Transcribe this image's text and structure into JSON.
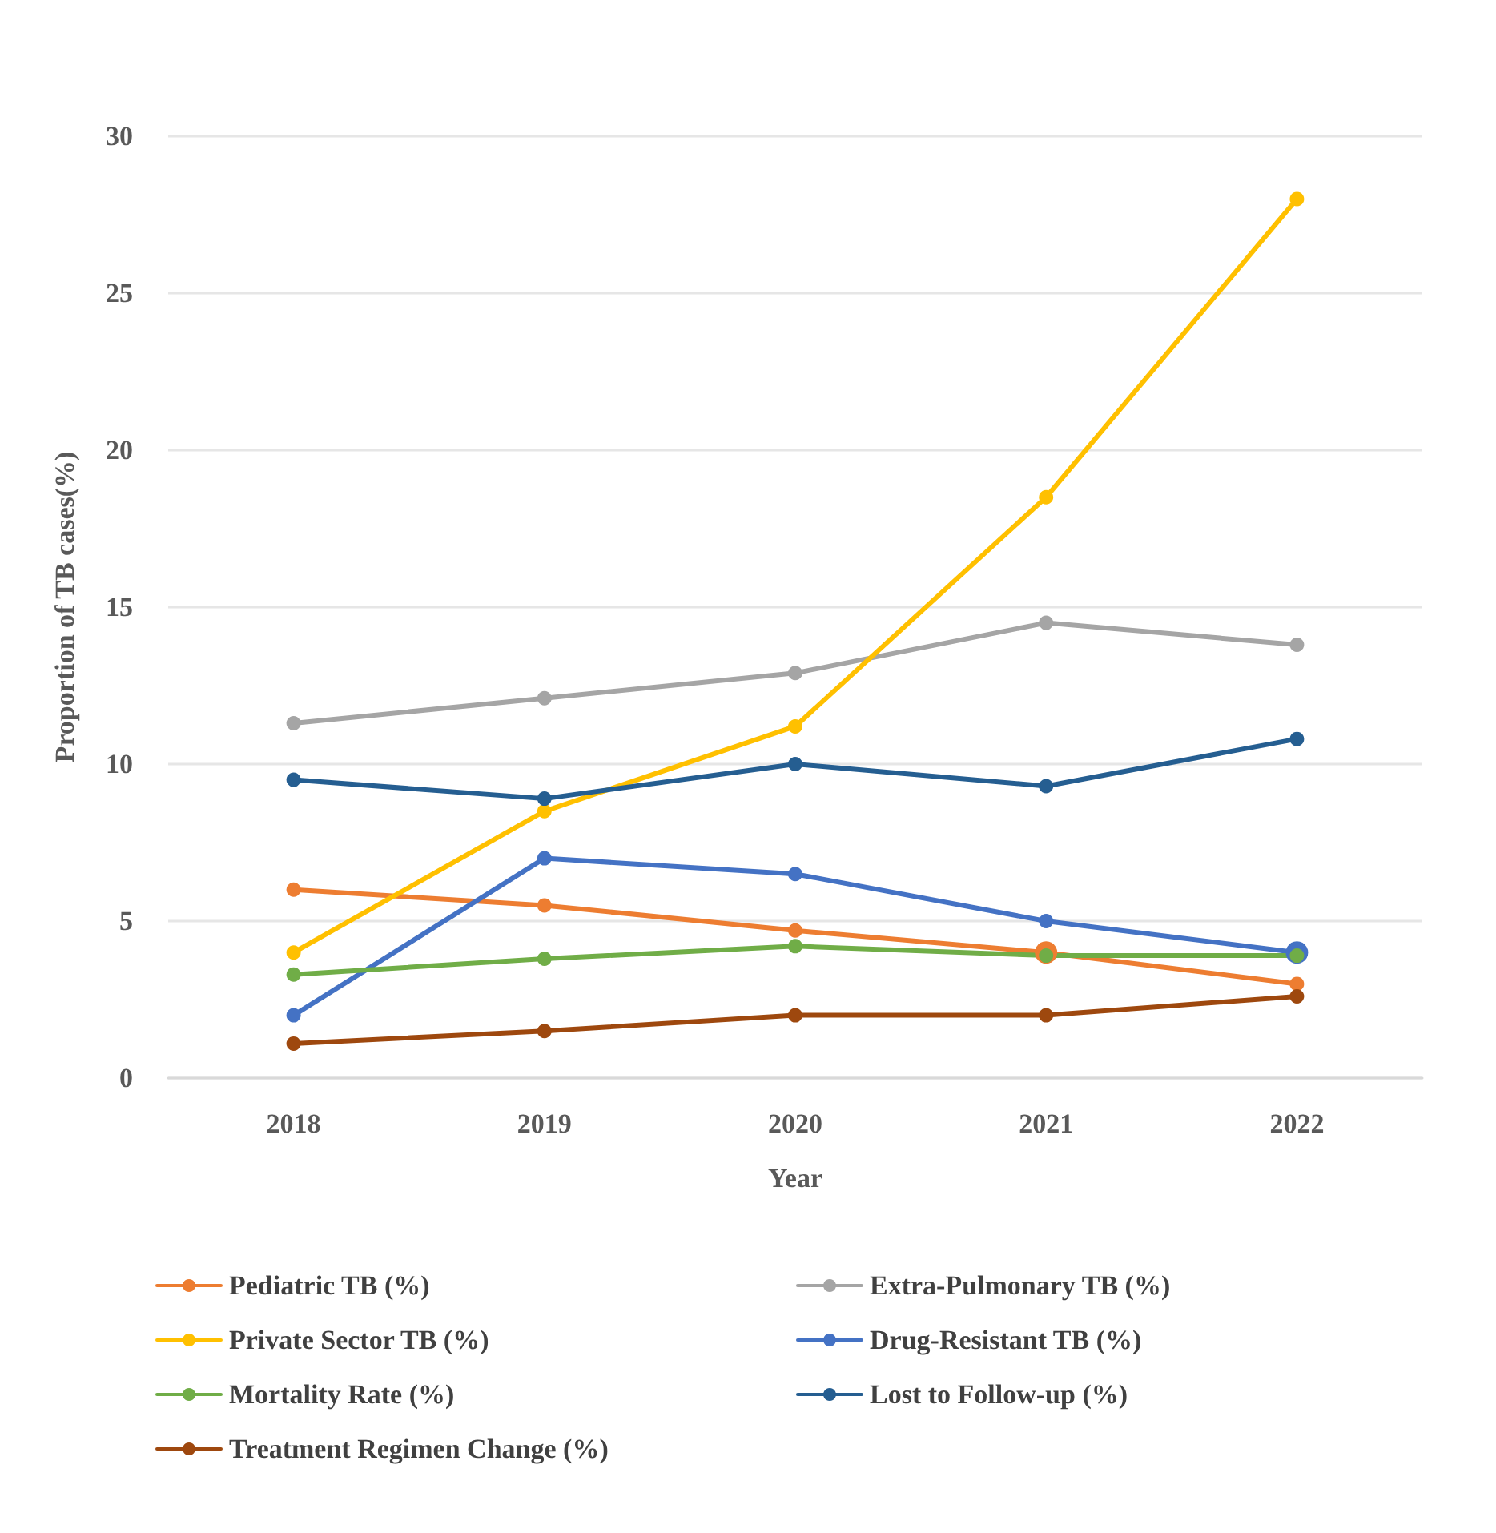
{
  "chart_data": {
    "type": "line",
    "xlabel": "Year",
    "ylabel": "Proportion of TB cases(%)",
    "categories": [
      "2018",
      "2019",
      "2020",
      "2021",
      "2022"
    ],
    "ylim": [
      0,
      30
    ],
    "yticks": [
      0,
      5,
      10,
      15,
      20,
      25,
      30
    ],
    "grid": "y",
    "legend": "bottom",
    "marker": "circle",
    "line_style": "solid",
    "series": [
      {
        "name": "Pediatric TB (%)",
        "color": "#ed7d31",
        "values": [
          6.0,
          5.5,
          4.7,
          4.0,
          3.0
        ]
      },
      {
        "name": "Extra-Pulmonary TB (%)",
        "color": "#a5a5a5",
        "values": [
          11.3,
          12.1,
          12.9,
          14.5,
          13.8
        ]
      },
      {
        "name": "Private Sector TB (%)",
        "color": "#ffc000",
        "values": [
          4.0,
          8.5,
          11.2,
          18.5,
          28.0
        ]
      },
      {
        "name": "Drug-Resistant TB (%)",
        "color": "#4472c4",
        "values": [
          2.0,
          7.0,
          6.5,
          5.0,
          4.0
        ]
      },
      {
        "name": "Mortality Rate (%)",
        "color": "#70ad47",
        "values": [
          3.3,
          3.8,
          4.2,
          3.9,
          3.9
        ]
      },
      {
        "name": "Lost to Follow-up (%)",
        "color": "#255e91",
        "values": [
          9.5,
          8.9,
          10.0,
          9.3,
          10.8
        ]
      },
      {
        "name": "Treatment Regimen Change (%)",
        "color": "#9e480e",
        "values": [
          1.1,
          1.5,
          2.0,
          2.0,
          2.6
        ]
      }
    ]
  }
}
